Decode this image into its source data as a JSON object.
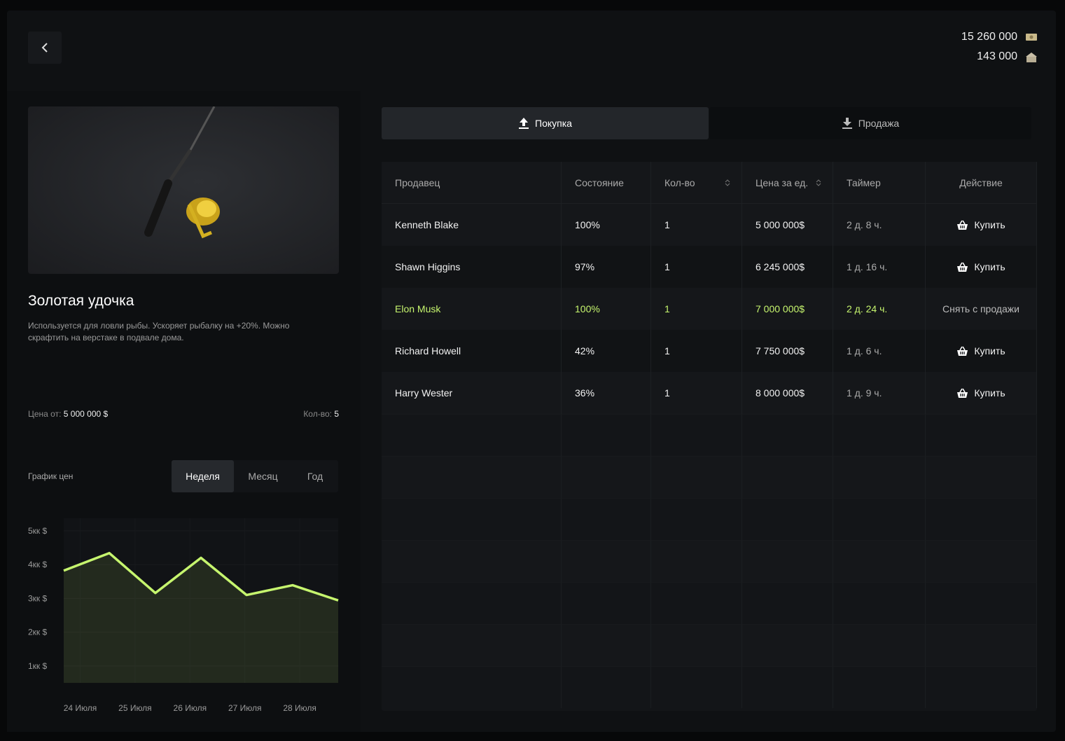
{
  "header": {
    "balance_cash": "15 260 000",
    "balance_bank": "143 000"
  },
  "item": {
    "title": "Золотая удочка",
    "description": "Используется для ловли рыбы. Ускоряет рыбалку на +20%. Можно скрафтить на верстаке в подвале дома.",
    "price_label": "Цена от:",
    "price": "5 000 000 $",
    "qty_label": "Кол-во:",
    "qty": "5"
  },
  "chart_data": {
    "type": "line",
    "title": "График цен",
    "periods": [
      "Неделя",
      "Месяц",
      "Год"
    ],
    "active_period": 0,
    "xlim": [
      23.7,
      28.7
    ],
    "xticks": [
      {
        "value": 24,
        "label": "24 Июля"
      },
      {
        "value": 25,
        "label": "25 Июля"
      },
      {
        "value": 26,
        "label": "26 Июля"
      },
      {
        "value": 27,
        "label": "27 Июля"
      },
      {
        "value": 28,
        "label": "28 Июля"
      }
    ],
    "ylim": [
      500000,
      5370000
    ],
    "yticks": [
      {
        "value": 5000000,
        "label": "5кк $"
      },
      {
        "value": 4000000,
        "label": "4кк $"
      },
      {
        "value": 3000000,
        "label": "3кк $"
      },
      {
        "value": 2000000,
        "label": "2кк $"
      },
      {
        "value": 1000000,
        "label": "1кк $"
      }
    ],
    "series": [
      {
        "color": "#c6f56e",
        "x": [
          23.7,
          24.53,
          25.37,
          26.2,
          27.03,
          27.87,
          28.7
        ],
        "values": [
          3820000,
          4340000,
          3160000,
          4200000,
          3100000,
          3390000,
          2940000
        ]
      }
    ]
  },
  "tabs": [
    "Покупка",
    "Продажа"
  ],
  "active_tab": 0,
  "table": {
    "columns": [
      "Продавец",
      "Состояние",
      "Кол-во",
      "Цена за ед.",
      "Таймер",
      "Действие"
    ],
    "sortable": [
      2,
      3
    ],
    "highlight_row": 2,
    "rows": [
      [
        "Kenneth Blake",
        "100%",
        "1",
        "5 000 000$",
        "2 д. 8 ч.",
        "Купить"
      ],
      [
        "Shawn Higgins",
        "97%",
        "1",
        "6 245 000$",
        "1 д. 16 ч.",
        "Купить"
      ],
      [
        "Elon Musk",
        "100%",
        "1",
        "7 000 000$",
        "2 д. 24 ч.",
        "Снять с продажи"
      ],
      [
        "Richard Howell",
        "42%",
        "1",
        "7 750 000$",
        "1 д. 6 ч.",
        "Купить"
      ],
      [
        "Harry Wester",
        "36%",
        "1",
        "8 000 000$",
        "1 д. 9 ч.",
        "Купить"
      ]
    ],
    "empty_rows": 7
  }
}
